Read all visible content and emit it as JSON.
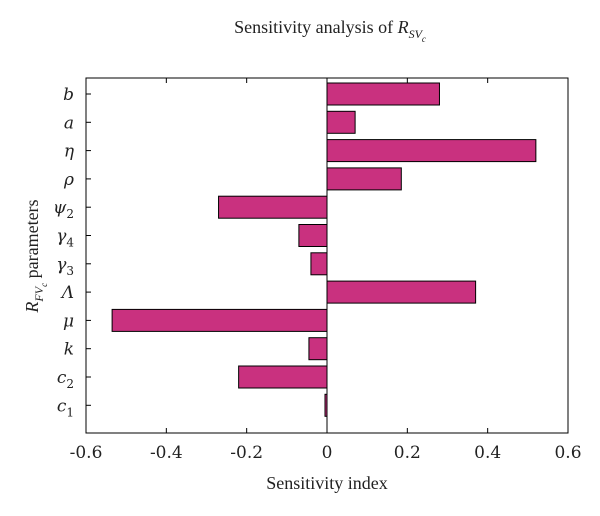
{
  "chart_data": {
    "type": "bar",
    "orientation": "horizontal",
    "title": {
      "main": "Sensitivity analysis of ",
      "symbol": "R",
      "sub": "SV",
      "subsub": "c"
    },
    "xlabel": "Sensitivity index",
    "ylabel": {
      "symbol": "R",
      "sub": "FV",
      "subsub": "c",
      "suffix": " parameters"
    },
    "xlim": [
      -0.6,
      0.6
    ],
    "xticks": [
      -0.6,
      -0.4,
      -0.2,
      0,
      0.2,
      0.4,
      0.6
    ],
    "xtick_labels": [
      "-0.6",
      "-0.4",
      "-0.2",
      "0",
      "0.2",
      "0.4",
      "0.6"
    ],
    "categories": [
      {
        "label": "c",
        "sub": "1"
      },
      {
        "label": "c",
        "sub": "2"
      },
      {
        "label": "k",
        "sub": ""
      },
      {
        "label": "μ",
        "sub": ""
      },
      {
        "label": "Λ",
        "sub": ""
      },
      {
        "label": "γ",
        "sub": "3"
      },
      {
        "label": "γ",
        "sub": "4"
      },
      {
        "label": "ψ",
        "sub": "2"
      },
      {
        "label": "ρ",
        "sub": ""
      },
      {
        "label": "η",
        "sub": ""
      },
      {
        "label": "a",
        "sub": ""
      },
      {
        "label": "b",
        "sub": ""
      }
    ],
    "values": [
      -0.005,
      -0.22,
      -0.045,
      -0.535,
      0.37,
      -0.04,
      -0.07,
      -0.27,
      0.185,
      0.52,
      0.07,
      0.28
    ],
    "bar_color": "#c9317f",
    "grid": false
  }
}
